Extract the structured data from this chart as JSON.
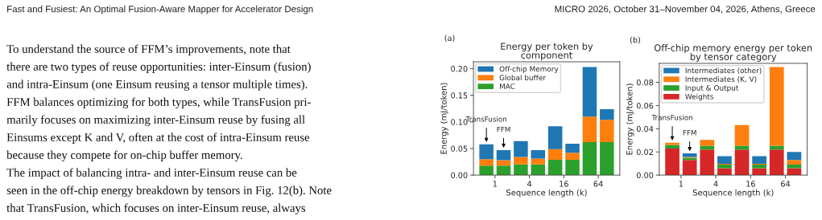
{
  "chart_data": [
    {
      "type": "other",
      "annotations": [
        "Fast and Fusiest: An Optimal Fusion-Aware Mapper for Accelerator Design",
        "MICRO 2026, October 31–November 04, 2026, Athens, Greece",
        "To understand the source of FFM’s improvements, note that",
        "there are two types of reuse opportunities: inter-Einsum (fusion)",
        "and intra-Einsum (one Einsum reusing a tensor multiple times).",
        "FFM balances optimizing for both types, while TransFusion pri-",
        "marily focuses on maximizing inter-Einsum reuse by fusing all",
        "Einsums except K and V, often at the cost of intra-Einsum reuse",
        "because they compete for on-chip buffer memory.",
        "The impact of balancing intra- and inter-Einsum reuse can be",
        "seen in the off-chip energy breakdown by tensors in Fig. 12(b). Note",
        "that TransFusion, which focuses on inter-Einsum reuse, always"
      ]
    },
    {
      "type": "bar",
      "stacked": true,
      "title": "Energy per token by\ncomponent",
      "xlabel": "Sequence length (k)",
      "ylabel": "Energy (mJ/token)",
      "categories": [
        "1",
        null,
        "4",
        null,
        "16",
        null,
        "64",
        null
      ],
      "ylim": [
        0,
        0.213
      ],
      "yticks": [
        {
          "value": 0,
          "label": "0.00"
        },
        {
          "value": 0.05,
          "label": "0.05"
        },
        {
          "value": 0.1,
          "label": "0.10"
        },
        {
          "value": 0.15,
          "label": "0.15"
        },
        {
          "value": 0.2,
          "label": "0.20"
        }
      ],
      "series": [
        {
          "name": "MAC",
          "color": "#2ca02c",
          "values": [
            0.018,
            0.018,
            0.02,
            0.02,
            0.029,
            0.029,
            0.062,
            0.062
          ]
        },
        {
          "name": "Global buffer",
          "color": "#ff7f0e",
          "values": [
            0.012,
            0.01,
            0.014,
            0.011,
            0.02,
            0.013,
            0.048,
            0.042
          ]
        },
        {
          "name": "Off-chip Memory",
          "color": "#1f77b4",
          "values": [
            0.028,
            0.019,
            0.03,
            0.016,
            0.043,
            0.017,
            0.093,
            0.02
          ]
        }
      ],
      "legend": "top left",
      "grid": false,
      "annotations": [
        "(a)",
        "TransFusion",
        "FFM"
      ]
    },
    {
      "type": "bar",
      "stacked": true,
      "title": "Off-chip memory energy per token\nby tensor category",
      "xlabel": "Sequence length (k)",
      "ylabel": "Energy (mJ/token)",
      "categories": [
        "1",
        null,
        "4",
        null,
        "16",
        null,
        "64",
        null
      ],
      "ylim": [
        0,
        0.0964
      ],
      "yticks": [
        {
          "value": 0,
          "label": "0.00"
        },
        {
          "value": 0.02,
          "label": "0.02"
        },
        {
          "value": 0.04,
          "label": "0.04"
        },
        {
          "value": 0.06,
          "label": "0.06"
        },
        {
          "value": 0.08,
          "label": "0.08"
        }
      ],
      "series": [
        {
          "name": "Weights",
          "color": "#d62728",
          "values": [
            0.023,
            0.013,
            0.022,
            0.006,
            0.022,
            0.006,
            0.022,
            0.006
          ]
        },
        {
          "name": "Input & Output",
          "color": "#2ca02c",
          "values": [
            0.003,
            0.002,
            0.0034,
            0.003,
            0.0034,
            0.003,
            0.0034,
            0.003
          ]
        },
        {
          "name": "Intermediates (K, V)",
          "color": "#ff7f0e",
          "values": [
            0.002,
            0.0007,
            0.005,
            0.0007,
            0.0178,
            0.0007,
            0.0678,
            0.004
          ]
        },
        {
          "name": "Intermediates (other)",
          "color": "#1f77b4",
          "values": [
            0,
            0.003,
            0,
            0.0067,
            0,
            0.0067,
            0,
            0.0069
          ]
        }
      ],
      "legend": "top left",
      "grid": false,
      "annotations": [
        "(b)",
        "TransFusion",
        "FFM"
      ]
    }
  ]
}
